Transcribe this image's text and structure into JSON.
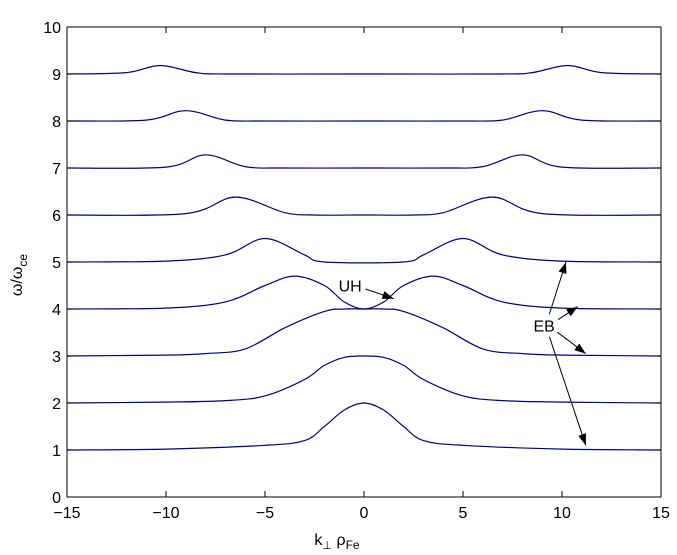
{
  "chart_data": {
    "type": "line",
    "xlabel": "k⊥ ρFe",
    "xlabel_parts": {
      "k": "k",
      "perp": "⊥",
      "rho": " ρ",
      "fe": "Fe"
    },
    "ylabel": "ω/ωce",
    "ylabel_parts": {
      "main": "ω/ω",
      "sub": "ce"
    },
    "xlim": [
      -15,
      15
    ],
    "ylim": [
      0,
      10
    ],
    "xticks": [
      -15,
      -10,
      -5,
      0,
      5,
      10,
      15
    ],
    "yticks": [
      0,
      1,
      2,
      3,
      4,
      5,
      6,
      7,
      8,
      9,
      10
    ],
    "xtick_labels": [
      "−15",
      "−10",
      "−5",
      "0",
      "5",
      "10",
      "15"
    ],
    "ytick_labels": [
      "0",
      "1",
      "2",
      "3",
      "4",
      "5",
      "6",
      "7",
      "8",
      "9",
      "10"
    ],
    "grid": false,
    "line_color": "#00007f",
    "series": [
      {
        "x": [
          -15,
          -10,
          -5,
          -3,
          -2,
          -1,
          0,
          1,
          2,
          3,
          5,
          10,
          15
        ],
        "y": [
          1.0,
          1.02,
          1.1,
          1.2,
          1.5,
          1.85,
          2.0,
          1.85,
          1.5,
          1.2,
          1.1,
          1.02,
          1.0
        ]
      },
      {
        "x": [
          -15,
          -10,
          -7,
          -5,
          -3,
          -2,
          -1,
          0,
          1,
          2,
          3,
          5,
          7,
          10,
          15
        ],
        "y": [
          2.0,
          2.02,
          2.05,
          2.15,
          2.5,
          2.8,
          2.97,
          3.0,
          2.97,
          2.8,
          2.5,
          2.15,
          2.05,
          2.02,
          2.0
        ]
      },
      {
        "x": [
          -15,
          -10,
          -8,
          -6,
          -4,
          -2,
          -1,
          0,
          1,
          2,
          4,
          6,
          8,
          10,
          15
        ],
        "y": [
          3.0,
          3.02,
          3.05,
          3.15,
          3.6,
          3.95,
          4.0,
          4.0,
          4.0,
          3.95,
          3.6,
          3.15,
          3.05,
          3.02,
          3.0
        ]
      },
      {
        "x": [
          -15,
          -10,
          -7,
          -5,
          -3.5,
          -2,
          -1,
          0,
          1,
          2,
          3.5,
          5,
          7,
          10,
          15
        ],
        "y": [
          4.0,
          4.02,
          4.15,
          4.5,
          4.7,
          4.5,
          4.15,
          4.0,
          4.15,
          4.5,
          4.7,
          4.5,
          4.15,
          4.02,
          4.0
        ]
      },
      {
        "x": [
          -15,
          -10,
          -7,
          -5,
          -3,
          -2,
          2,
          3,
          5,
          7,
          10,
          15
        ],
        "y": [
          5.0,
          5.02,
          5.15,
          5.5,
          5.15,
          5.0,
          5.0,
          5.15,
          5.5,
          5.15,
          5.02,
          5.0
        ]
      },
      {
        "x": [
          -15,
          -9,
          -6.5,
          -4,
          -2.5,
          -0.3,
          0.3,
          2.5,
          4,
          6.5,
          9,
          15
        ],
        "y": [
          6.0,
          6.03,
          6.38,
          6.05,
          6.0,
          6.0,
          6.0,
          6.0,
          6.05,
          6.38,
          6.03,
          6.0
        ]
      },
      {
        "x": [
          -15,
          -10,
          -8,
          -6,
          -4,
          -0.3,
          0.3,
          4,
          6,
          8,
          10,
          15
        ],
        "y": [
          7.0,
          7.02,
          7.28,
          7.03,
          7.0,
          7.0,
          7.0,
          7.0,
          7.03,
          7.28,
          7.02,
          7.0
        ]
      },
      {
        "x": [
          -15,
          -11,
          -9,
          -7,
          -5,
          -0.3,
          0.3,
          5,
          7,
          9,
          11,
          15
        ],
        "y": [
          8.0,
          8.02,
          8.22,
          8.02,
          8.0,
          8.0,
          8.0,
          8.0,
          8.02,
          8.22,
          8.02,
          8.0
        ]
      },
      {
        "x": [
          -15,
          -12,
          -10.3,
          -8.5,
          -7,
          -1,
          1,
          7,
          8.5,
          10.3,
          12,
          15
        ],
        "y": [
          9.0,
          9.03,
          9.18,
          9.03,
          9.0,
          9.0,
          9.0,
          9.0,
          9.03,
          9.18,
          9.03,
          9.0
        ]
      }
    ],
    "annotations": [
      {
        "text": "UH",
        "x": -0.7,
        "y": 4.5,
        "arrow_to": [
          [
            1.5,
            4.22
          ]
        ]
      },
      {
        "text": "EB",
        "x": 9.1,
        "y": 3.65,
        "arrow_to": [
          [
            10.2,
            5.0
          ],
          [
            10.8,
            4.05
          ],
          [
            11.2,
            3.05
          ],
          [
            11.2,
            1.1
          ]
        ]
      }
    ]
  }
}
